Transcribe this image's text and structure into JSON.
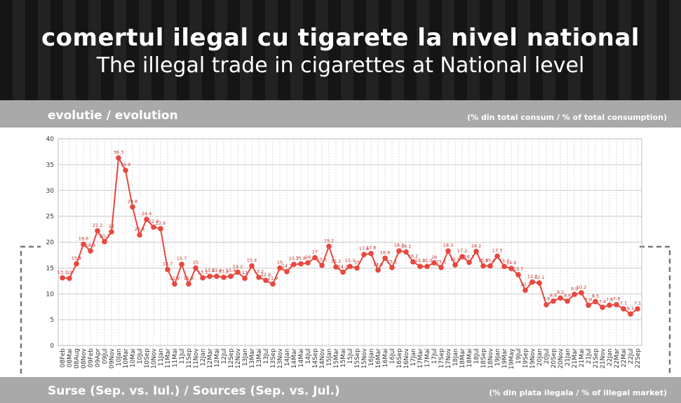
{
  "header": {
    "title": "comertul ilegal cu tigarete la nivel national",
    "subtitle": "The illegal trade in cigarettes at National level"
  },
  "chart_data": {
    "type": "line",
    "title": "evolutie / evolution",
    "subtitle": "(% din total consum / % of total consumption)",
    "footer": "Surse (Sep. vs. Iul.) / Sources (Sep. vs. Jul.)",
    "footer_note": "(% din plata ilegala / % of illegal market)",
    "categories": [
      "08Feb",
      "08Mai",
      "08Aug",
      "08Nov",
      "09Feb",
      "09Apr",
      "09Jul",
      "09Nov",
      "10Jan",
      "10Mar",
      "10Mai",
      "10Jul",
      "10Sep",
      "10Nov",
      "11Jan",
      "11Mar",
      "11Mai",
      "11Jul",
      "11Sep",
      "11Nov",
      "12Jan",
      "12Mar",
      "12Mai",
      "12Jul",
      "12Sep",
      "12Nov",
      "13Jan",
      "13Mar",
      "13Mai",
      "13Jul",
      "13Sep",
      "13Nov",
      "14Jan",
      "14Mar",
      "14Mai",
      "14Jul",
      "14Sep",
      "14Nov",
      "15Jan",
      "15Mar",
      "15Mai",
      "15Jul",
      "15Sep",
      "15Nov",
      "16Jan",
      "16Mar",
      "16Mai",
      "16Jul",
      "16Sep",
      "16Nov",
      "17Jan",
      "17Mar",
      "17Mai",
      "17Jul",
      "17Sep",
      "17Nov",
      "18Jan",
      "18Mar",
      "18Mai",
      "18Jul",
      "18Sep",
      "18Nov",
      "19Jan",
      "19Mar",
      "19May",
      "19Jul",
      "19Sep",
      "19Nov",
      "20Jan",
      "20Jul",
      "20Sep",
      "20Nov",
      "21Jan",
      "21Mar",
      "21Mai",
      "21Jul",
      "21Sep",
      "21Nov",
      "22Jan",
      "22Mar",
      "22Mai",
      "22Jul",
      "22Sep"
    ],
    "values": [
      13.1,
      13,
      15.8,
      19.6,
      18.3,
      22.2,
      20.1,
      22,
      36.3,
      33.9,
      26.8,
      21.4,
      24.4,
      22.9,
      22.6,
      14.7,
      11.9,
      15.7,
      11.9,
      15.0,
      13.1,
      13.4,
      13.4,
      13.2,
      13.4,
      14.2,
      13,
      15.4,
      13.2,
      12.6,
      11.9,
      15.0,
      14.3,
      15.7,
      15.8,
      16.0,
      17.0,
      15.5,
      19.2,
      15.2,
      14.2,
      15.3,
      15.0,
      17.6,
      17.8,
      14.6,
      16.9,
      15.1,
      18.3,
      18.1,
      16.2,
      15.3,
      15.3,
      16.0,
      15.1,
      18.3,
      15.6,
      17.2,
      16.1,
      18.2,
      15.4,
      15.4,
      17.3,
      15.3,
      14.9,
      13.7,
      10.7,
      12.3,
      12.1,
      7.9,
      8.6,
      9.2,
      8.6,
      9.9,
      10.2,
      7.8,
      8.5,
      7.4,
      7.8,
      7.9,
      7.1,
      6.1,
      7.1
    ],
    "color": "#e8473f",
    "ylim": [
      0,
      40
    ],
    "yticks": [
      0,
      5,
      10,
      15,
      20,
      25,
      30,
      35,
      40
    ],
    "grid": true
  }
}
